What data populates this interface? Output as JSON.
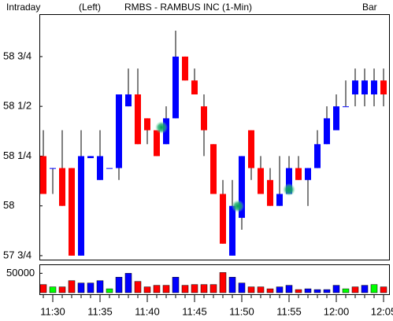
{
  "chart_data": [
    {
      "type": "candlestick",
      "label_left": "Intraday",
      "label_axis": "(Left)",
      "title": "RMBS - RAMBUS INC  (1-Min)",
      "label_right": "Bar",
      "categories": [
        null,
        "11:30",
        null,
        null,
        null,
        null,
        "11:35",
        null,
        null,
        null,
        null,
        "11:40",
        null,
        null,
        null,
        null,
        "11:45",
        null,
        null,
        null,
        null,
        "11:50",
        null,
        null,
        null,
        null,
        "11:55",
        null,
        null,
        null,
        null,
        "12:00",
        null,
        null,
        null,
        null,
        "12:05"
      ],
      "open": [
        58.25,
        58.19,
        58.19,
        58.19,
        57.75,
        58.24,
        58.13,
        58.19,
        58.19,
        58.5,
        58.56,
        58.44,
        58.38,
        58.31,
        58.44,
        58.75,
        58.63,
        58.5,
        58.31,
        58.06,
        57.75,
        57.94,
        58.38,
        58.19,
        58.13,
        58.0,
        58.06,
        58.19,
        58.13,
        58.19,
        58.31,
        58.38,
        58.5,
        58.56,
        58.56,
        58.56,
        58.63
      ],
      "high": [
        58.38,
        58.19,
        58.38,
        58.19,
        58.38,
        58.25,
        58.38,
        58.19,
        58.56,
        58.69,
        58.69,
        58.44,
        58.38,
        58.5,
        58.88,
        58.75,
        58.69,
        58.56,
        58.31,
        58.13,
        58.13,
        58.25,
        58.38,
        58.25,
        58.19,
        58.25,
        58.25,
        58.25,
        58.19,
        58.38,
        58.5,
        58.56,
        58.63,
        58.69,
        58.69,
        58.69,
        58.69
      ],
      "low": [
        58.06,
        58.06,
        58.0,
        57.75,
        57.75,
        58.24,
        58.13,
        58.19,
        58.13,
        58.5,
        58.31,
        58.31,
        58.25,
        58.31,
        58.44,
        58.63,
        58.56,
        58.25,
        58.06,
        57.81,
        57.75,
        57.88,
        58.13,
        58.06,
        58.0,
        58.0,
        58.06,
        58.13,
        58.0,
        58.19,
        58.31,
        58.38,
        58.5,
        58.5,
        58.5,
        58.5,
        58.5
      ],
      "close": [
        58.06,
        58.19,
        58.0,
        57.75,
        58.25,
        58.25,
        58.25,
        58.19,
        58.56,
        58.56,
        58.31,
        58.38,
        58.25,
        58.44,
        58.75,
        58.63,
        58.56,
        58.38,
        58.06,
        57.81,
        58.0,
        58.25,
        58.19,
        58.06,
        58.0,
        58.06,
        58.19,
        58.13,
        58.19,
        58.31,
        58.44,
        58.5,
        58.5,
        58.63,
        58.63,
        58.63,
        58.56
      ],
      "up_color": "#0000ff",
      "down_color": "#ff0000",
      "ylim": [
        57.73,
        58.96
      ],
      "yticks": [
        {
          "value": 57.75,
          "label": "57 3/4"
        },
        58,
        {
          "value": 58.25,
          "label": "58 1/4"
        },
        {
          "value": 58.5,
          "label": "58 1/2"
        },
        {
          "value": 58.75,
          "label": "58 3/4"
        }
      ]
    },
    {
      "type": "bar",
      "values": [
        21000,
        15000,
        15000,
        31000,
        25000,
        25000,
        31000,
        10000,
        40000,
        50000,
        29000,
        15000,
        19000,
        19000,
        40000,
        19000,
        21000,
        21000,
        21000,
        52000,
        40000,
        25000,
        15000,
        15000,
        10000,
        15000,
        19000,
        8000,
        10000,
        8000,
        8000,
        19000,
        10000,
        15000,
        19000,
        21000,
        15000
      ],
      "colors": [
        "#ff0000",
        "#00ff00",
        "#ff0000",
        "#ff0000",
        "#0000ff",
        "#0000ff",
        "#0000ff",
        "#00ff00",
        "#0000ff",
        "#0000ff",
        "#ff0000",
        "#ff0000",
        "#ff0000",
        "#ff0000",
        "#0000ff",
        "#ff0000",
        "#ff0000",
        "#ff0000",
        "#ff0000",
        "#ff0000",
        "#0000ff",
        "#0000ff",
        "#ff0000",
        "#ff0000",
        "#ff0000",
        "#0000ff",
        "#0000ff",
        "#ff0000",
        "#0000ff",
        "#0000ff",
        "#0000ff",
        "#0000ff",
        "#00ff00",
        "#ff0000",
        "#0000ff",
        "#00ff00",
        "#ff0000"
      ],
      "ylim": [
        0,
        69000
      ],
      "yticks": [
        50000
      ]
    }
  ]
}
